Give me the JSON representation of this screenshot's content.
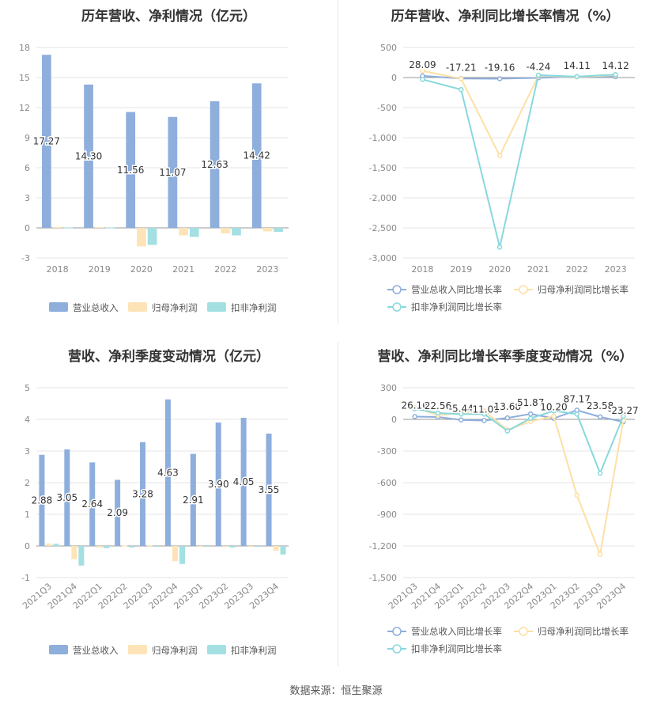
{
  "source_label": "数据来源：恒生聚源",
  "chart_data": [
    {
      "id": "annual-revenue-profit",
      "type": "bar",
      "title": "历年营收、净利情况（亿元）",
      "categories": [
        "2018",
        "2019",
        "2020",
        "2021",
        "2022",
        "2023"
      ],
      "ylim": [
        -3,
        18
      ],
      "yticks": [
        -3,
        0,
        3,
        6,
        9,
        12,
        15,
        18
      ],
      "series": [
        {
          "name": "营业总收入",
          "color": "#8eaedc",
          "values": [
            17.27,
            14.3,
            11.56,
            11.07,
            12.63,
            14.42
          ],
          "labels": [
            "17.27",
            "14.30",
            "11.56",
            "11.07",
            "12.63",
            "14.42"
          ]
        },
        {
          "name": "归母净利润",
          "color": "#fde4b8",
          "values": [
            0.1,
            0.08,
            -1.85,
            -0.75,
            -0.55,
            -0.35
          ]
        },
        {
          "name": "扣非净利润",
          "color": "#a4e0e2",
          "values": [
            0.05,
            0.03,
            -1.7,
            -0.9,
            -0.75,
            -0.4
          ]
        }
      ],
      "legend_position": "bottom",
      "grid": true
    },
    {
      "id": "annual-yoy-growth",
      "type": "line",
      "title": "历年营收、净利同比增长率情况（%）",
      "categories": [
        "2018",
        "2019",
        "2020",
        "2021",
        "2022",
        "2023"
      ],
      "ylim": [
        -3000,
        500
      ],
      "yticks": [
        -3000,
        -2500,
        -2000,
        -1500,
        -1000,
        -500,
        0,
        500
      ],
      "series": [
        {
          "name": "营业总收入同比增长率",
          "color": "#8eaedc",
          "values": [
            28.09,
            -17.21,
            -19.16,
            -4.24,
            14.11,
            14.12
          ],
          "labels": [
            "28.09",
            "-17.21",
            "-19.16",
            "-4.24",
            "14.11",
            "14.12"
          ]
        },
        {
          "name": "归母净利润同比增长率",
          "color": "#fde0a6",
          "values": [
            110,
            -20,
            -1300,
            30,
            10,
            40
          ]
        },
        {
          "name": "扣非净利润同比增长率",
          "color": "#88d8dc",
          "values": [
            -30,
            -200,
            -2820,
            40,
            15,
            50
          ]
        }
      ],
      "legend_position": "bottom",
      "grid": true
    },
    {
      "id": "quarterly-revenue-profit",
      "type": "bar",
      "title": "营收、净利季度变动情况（亿元）",
      "categories": [
        "2021Q3",
        "2021Q4",
        "2022Q1",
        "2022Q2",
        "2022Q3",
        "2022Q4",
        "2023Q1",
        "2023Q2",
        "2023Q3",
        "2023Q4"
      ],
      "ylim": [
        -1,
        5
      ],
      "yticks": [
        -1,
        0,
        1,
        2,
        3,
        4,
        5
      ],
      "series": [
        {
          "name": "营业总收入",
          "color": "#8eaedc",
          "values": [
            2.88,
            3.05,
            2.64,
            2.09,
            3.28,
            4.63,
            2.91,
            3.9,
            4.05,
            3.55
          ],
          "labels": [
            "2.88",
            "3.05",
            "2.64",
            "2.09",
            "3.28",
            "4.63",
            "2.91",
            "3.90",
            "4.05",
            "3.55"
          ]
        },
        {
          "name": "归母净利润",
          "color": "#fde4b8",
          "values": [
            0.08,
            -0.42,
            -0.05,
            0.01,
            0.02,
            -0.48,
            0.0,
            -0.02,
            -0.03,
            -0.15
          ]
        },
        {
          "name": "扣非净利润",
          "color": "#a4e0e2",
          "values": [
            0.07,
            -0.62,
            -0.07,
            -0.05,
            0.0,
            -0.57,
            -0.02,
            -0.05,
            -0.03,
            -0.27
          ]
        }
      ],
      "legend_position": "bottom",
      "grid": true
    },
    {
      "id": "quarterly-yoy-growth",
      "type": "line",
      "title": "营收、净利同比增长率季度变动情况（%）",
      "categories": [
        "2021Q3",
        "2021Q4",
        "2022Q1",
        "2022Q2",
        "2022Q3",
        "2022Q4",
        "2023Q1",
        "2023Q2",
        "2023Q3",
        "2023Q4"
      ],
      "ylim": [
        -1500,
        300
      ],
      "yticks": [
        -1500,
        -1200,
        -900,
        -600,
        -300,
        0,
        300
      ],
      "series": [
        {
          "name": "营业总收入同比增长率",
          "color": "#8eaedc",
          "values": [
            26.16,
            22.56,
            -5.44,
            -11.09,
            13.68,
            51.87,
            10.2,
            87.17,
            23.58,
            -23.27
          ],
          "labels": [
            "26.16",
            "22.56",
            "-5.44",
            "-11.09",
            "13.68",
            "51.87",
            "10.20",
            "87.17",
            "23.58",
            "-23.27"
          ]
        },
        {
          "name": "归母净利润同比增长率",
          "color": "#fde0a6",
          "values": [
            110,
            40,
            60,
            80,
            -100,
            -20,
            30,
            -720,
            -1280,
            -10
          ]
        },
        {
          "name": "扣非净利润同比增长率",
          "color": "#88d8dc",
          "values": [
            100,
            60,
            50,
            50,
            -110,
            10,
            80,
            50,
            -510,
            30
          ]
        }
      ],
      "legend_position": "bottom",
      "grid": true
    }
  ]
}
